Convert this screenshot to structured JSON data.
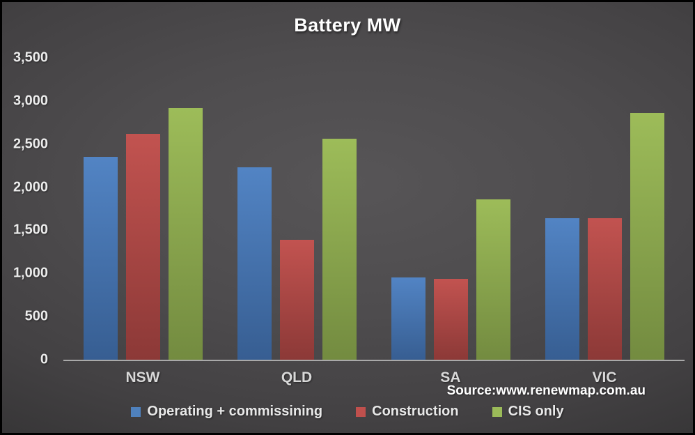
{
  "title": "Battery MW",
  "source": "Source:www.renewmap.com.au",
  "colors": {
    "background_center": "#575557",
    "background_edge": "#232323",
    "axis_line": "#a9a9a9",
    "title_text": "#ffffff",
    "tick_text": "#ececec",
    "category_text": "#d9d9d9",
    "legend_text": "#e8e8e8"
  },
  "chart_data": {
    "type": "bar",
    "title": "Battery MW",
    "categories": [
      "NSW",
      "QLD",
      "SA",
      "VIC"
    ],
    "series": [
      {
        "name": "Operating + commissining",
        "color": "#4F81BD",
        "color_top": "#5284c4",
        "color_bottom": "#375e92",
        "values": [
          2350,
          2230,
          950,
          1640
        ]
      },
      {
        "name": "Construction",
        "color": "#C0504D",
        "color_top": "#c25350",
        "color_bottom": "#8c3937",
        "values": [
          2620,
          1390,
          940,
          1640
        ]
      },
      {
        "name": "CIS only",
        "color": "#9BBB59",
        "color_top": "#9dbc59",
        "color_bottom": "#738b40",
        "values": [
          2920,
          2560,
          1860,
          2860
        ]
      }
    ],
    "xlabel": "",
    "ylabel": "",
    "ylim": [
      0,
      3500
    ],
    "ytick_step": 500,
    "yticks": [
      "0",
      "500",
      "1,000",
      "1,500",
      "2,000",
      "2,500",
      "3,000",
      "3,500"
    ],
    "grid": false,
    "legend_position": "bottom",
    "annotations": [
      "Source:www.renewmap.com.au"
    ]
  }
}
